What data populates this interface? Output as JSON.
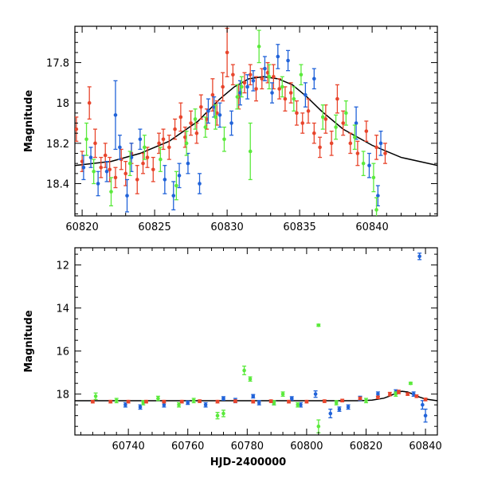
{
  "chart_data": [
    {
      "type": "scatter",
      "title": "",
      "xlabel": "",
      "ylabel": "Magnitude",
      "xlim": [
        60819.5,
        60844.5
      ],
      "ylim": [
        18.56,
        17.62
      ],
      "y_inverted": true,
      "x_ticks": [
        60820,
        60825,
        60830,
        60835,
        60840
      ],
      "y_ticks": [
        17.8,
        18,
        18.2,
        18.4
      ],
      "y_tick_labels": [
        "17.8",
        "18",
        "18.2",
        "18.4"
      ],
      "grid": false,
      "model_curve": {
        "color": "#000000",
        "points": [
          [
            60819.5,
            18.31
          ],
          [
            60822,
            18.29
          ],
          [
            60824,
            18.25
          ],
          [
            60826,
            18.19
          ],
          [
            60828,
            18.09
          ],
          [
            60829.5,
            17.98
          ],
          [
            60830.5,
            17.92
          ],
          [
            60831.5,
            17.88
          ],
          [
            60832.5,
            17.87
          ],
          [
            60833.5,
            17.88
          ],
          [
            60834.5,
            17.91
          ],
          [
            60835.5,
            17.97
          ],
          [
            60836.5,
            18.04
          ],
          [
            60838,
            18.13
          ],
          [
            60840,
            18.21
          ],
          [
            60842,
            18.27
          ],
          [
            60844.5,
            18.31
          ]
        ]
      },
      "series": [
        {
          "color": "#e8452c",
          "points": [
            [
              60819.6,
              18.13,
              0.06
            ],
            [
              60820.0,
              18.29,
              0.05
            ],
            [
              60820.5,
              18.0,
              0.08
            ],
            [
              60820.9,
              18.2,
              0.07
            ],
            [
              60821.3,
              18.32,
              0.05
            ],
            [
              60821.6,
              18.26,
              0.06
            ],
            [
              60821.9,
              18.33,
              0.06
            ],
            [
              60822.3,
              18.37,
              0.05
            ],
            [
              60822.7,
              18.28,
              0.05
            ],
            [
              60823.0,
              18.35,
              0.06
            ],
            [
              60823.4,
              18.25,
              0.05
            ],
            [
              60823.8,
              18.38,
              0.07
            ],
            [
              60824.2,
              18.3,
              0.05
            ],
            [
              60824.5,
              18.27,
              0.05
            ],
            [
              60824.9,
              18.33,
              0.06
            ],
            [
              60825.3,
              18.2,
              0.05
            ],
            [
              60825.6,
              18.18,
              0.05
            ],
            [
              60826.0,
              18.22,
              0.06
            ],
            [
              60826.4,
              18.13,
              0.05
            ],
            [
              60826.8,
              18.07,
              0.07
            ],
            [
              60827.1,
              18.17,
              0.05
            ],
            [
              60827.5,
              18.1,
              0.06
            ],
            [
              60827.9,
              18.15,
              0.05
            ],
            [
              60828.2,
              18.02,
              0.06
            ],
            [
              60828.6,
              18.08,
              0.05
            ],
            [
              60829.0,
              17.96,
              0.08
            ],
            [
              60829.3,
              18.05,
              0.06
            ],
            [
              60829.7,
              17.92,
              0.07
            ],
            [
              60830.0,
              17.75,
              0.12
            ],
            [
              60830.4,
              17.86,
              0.05
            ],
            [
              60830.8,
              17.97,
              0.06
            ],
            [
              60831.2,
              17.9,
              0.05
            ],
            [
              60831.6,
              17.86,
              0.05
            ],
            [
              60832.0,
              17.93,
              0.06
            ],
            [
              60832.4,
              17.88,
              0.05
            ],
            [
              60832.8,
              17.85,
              0.05
            ],
            [
              60833.2,
              17.87,
              0.06
            ],
            [
              60833.6,
              17.93,
              0.05
            ],
            [
              60834.0,
              17.98,
              0.06
            ],
            [
              60834.4,
              17.95,
              0.05
            ],
            [
              60834.8,
              18.05,
              0.06
            ],
            [
              60835.2,
              18.1,
              0.05
            ],
            [
              60835.6,
              18.04,
              0.06
            ],
            [
              60836.0,
              18.15,
              0.05
            ],
            [
              60836.4,
              18.22,
              0.05
            ],
            [
              60836.8,
              18.08,
              0.07
            ],
            [
              60837.2,
              18.2,
              0.06
            ],
            [
              60837.6,
              17.98,
              0.07
            ],
            [
              60838.0,
              18.1,
              0.06
            ],
            [
              60838.5,
              18.2,
              0.05
            ],
            [
              60839.0,
              18.25,
              0.06
            ],
            [
              60839.6,
              18.14,
              0.05
            ],
            [
              60840.3,
              18.22,
              0.06
            ],
            [
              60840.9,
              18.25,
              0.05
            ]
          ]
        },
        {
          "color": "#2163d9",
          "points": [
            [
              60820.1,
              18.32,
              0.06
            ],
            [
              60820.6,
              18.27,
              0.05
            ],
            [
              60821.1,
              18.4,
              0.06
            ],
            [
              60821.7,
              18.34,
              0.05
            ],
            [
              60822.3,
              18.06,
              0.17
            ],
            [
              60822.6,
              18.22,
              0.06
            ],
            [
              60823.1,
              18.46,
              0.08
            ],
            [
              60823.4,
              18.27,
              0.07
            ],
            [
              60824.0,
              18.18,
              0.05
            ],
            [
              60825.7,
              18.38,
              0.07
            ],
            [
              60826.3,
              18.46,
              0.07
            ],
            [
              60826.7,
              18.36,
              0.06
            ],
            [
              60827.3,
              18.3,
              0.05
            ],
            [
              60828.1,
              18.4,
              0.05
            ],
            [
              60828.7,
              18.04,
              0.06
            ],
            [
              60829.1,
              18.02,
              0.05
            ],
            [
              60829.5,
              18.06,
              0.06
            ],
            [
              60830.3,
              18.1,
              0.06
            ],
            [
              60830.9,
              17.95,
              0.06
            ],
            [
              60831.4,
              17.92,
              0.06
            ],
            [
              60831.8,
              17.89,
              0.05
            ],
            [
              60832.6,
              17.83,
              0.06
            ],
            [
              60833.1,
              17.95,
              0.05
            ],
            [
              60833.5,
              17.77,
              0.06
            ],
            [
              60834.2,
              17.79,
              0.05
            ],
            [
              60835.4,
              17.96,
              0.06
            ],
            [
              60836.0,
              17.88,
              0.05
            ],
            [
              60838.9,
              18.1,
              0.08
            ],
            [
              60839.8,
              18.31,
              0.06
            ],
            [
              60840.4,
              18.46,
              0.05
            ],
            [
              60840.6,
              18.2,
              0.06
            ]
          ]
        },
        {
          "color": "#5bea3c",
          "points": [
            [
              60820.3,
              18.18,
              0.08
            ],
            [
              60820.8,
              18.34,
              0.06
            ],
            [
              60822.0,
              18.44,
              0.07
            ],
            [
              60823.3,
              18.3,
              0.06
            ],
            [
              60824.3,
              18.22,
              0.06
            ],
            [
              60825.4,
              18.28,
              0.06
            ],
            [
              60826.5,
              18.41,
              0.07
            ],
            [
              60827.2,
              18.2,
              0.06
            ],
            [
              60827.8,
              18.08,
              0.05
            ],
            [
              60828.5,
              18.12,
              0.05
            ],
            [
              60829.2,
              18.07,
              0.06
            ],
            [
              60829.8,
              18.18,
              0.06
            ],
            [
              60830.7,
              17.97,
              0.06
            ],
            [
              60831.0,
              17.92,
              0.05
            ],
            [
              60831.6,
              18.24,
              0.14
            ],
            [
              60832.2,
              17.72,
              0.08
            ],
            [
              60832.9,
              17.87,
              0.06
            ],
            [
              60833.8,
              17.92,
              0.05
            ],
            [
              60834.6,
              17.98,
              0.06
            ],
            [
              60835.1,
              17.86,
              0.05
            ],
            [
              60836.6,
              18.07,
              0.06
            ],
            [
              60837.5,
              18.12,
              0.06
            ],
            [
              60838.2,
              18.05,
              0.06
            ],
            [
              60838.8,
              18.17,
              0.06
            ],
            [
              60839.4,
              18.3,
              0.06
            ],
            [
              60840.1,
              18.37,
              0.07
            ],
            [
              60840.3,
              18.53,
              0.06
            ]
          ]
        }
      ]
    },
    {
      "type": "scatter",
      "title": "",
      "xlabel": "HJD-2400000",
      "ylabel": "Magnitude",
      "xlim": [
        60722,
        60844
      ],
      "ylim": [
        19.9,
        11.2
      ],
      "y_inverted": true,
      "x_ticks": [
        60740,
        60760,
        60780,
        60800,
        60820,
        60840
      ],
      "y_ticks": [
        12,
        14,
        16,
        18
      ],
      "y_tick_labels": [
        "12",
        "14",
        "16",
        "18"
      ],
      "grid": false,
      "model_curve": {
        "color": "#000000",
        "points": [
          [
            60722,
            18.31
          ],
          [
            60818,
            18.31
          ],
          [
            60822,
            18.28
          ],
          [
            60826,
            18.19
          ],
          [
            60828,
            18.09
          ],
          [
            60830,
            17.96
          ],
          [
            60832,
            17.87
          ],
          [
            60834,
            17.9
          ],
          [
            60836,
            18.02
          ],
          [
            60838,
            18.14
          ],
          [
            60840,
            18.23
          ],
          [
            60844,
            18.31
          ]
        ]
      },
      "series": [
        {
          "color": "#2163d9",
          "points": [
            [
              60739,
              18.5,
              0.1
            ],
            [
              60744,
              18.6,
              0.1
            ],
            [
              60752,
              18.5,
              0.1
            ],
            [
              60760,
              18.4,
              0.08
            ],
            [
              60766,
              18.5,
              0.1
            ],
            [
              60772,
              18.2,
              0.08
            ],
            [
              60776,
              18.3,
              0.1
            ],
            [
              60782,
              18.1,
              0.08
            ],
            [
              60784,
              18.4,
              0.1
            ],
            [
              60789,
              18.4,
              0.1
            ],
            [
              60795,
              18.2,
              0.08
            ],
            [
              60798,
              18.5,
              0.1
            ],
            [
              60803,
              18.0,
              0.15
            ],
            [
              60808,
              18.9,
              0.2
            ],
            [
              60811,
              18.7,
              0.1
            ],
            [
              60814,
              18.6,
              0.1
            ],
            [
              60818,
              18.2,
              0.1
            ],
            [
              60824,
              18.0,
              0.1
            ],
            [
              60830,
              17.9,
              0.1
            ],
            [
              60836,
              18.0,
              0.1
            ],
            [
              60838,
              11.6,
              0.15
            ],
            [
              60839,
              18.5,
              0.2
            ],
            [
              60840,
              19.0,
              0.3
            ]
          ]
        },
        {
          "color": "#5bea3c",
          "points": [
            [
              60729,
              18.1,
              0.15
            ],
            [
              60736,
              18.3,
              0.1
            ],
            [
              60745,
              18.4,
              0.1
            ],
            [
              60750,
              18.2,
              0.1
            ],
            [
              60757,
              18.5,
              0.1
            ],
            [
              60762,
              18.3,
              0.1
            ],
            [
              60770,
              19.0,
              0.15
            ],
            [
              60772,
              18.9,
              0.15
            ],
            [
              60779,
              16.9,
              0.2
            ],
            [
              60781,
              17.3,
              0.1
            ],
            [
              60789,
              18.4,
              0.1
            ],
            [
              60792,
              18.0,
              0.1
            ],
            [
              60797,
              18.5,
              0.1
            ],
            [
              60804,
              14.8,
              0.05
            ],
            [
              60804,
              19.5,
              0.3
            ],
            [
              60810,
              18.4,
              0.1
            ],
            [
              60820,
              18.3,
              0.1
            ],
            [
              60830,
              18.0,
              0.1
            ],
            [
              60835,
              17.5,
              0.05
            ]
          ]
        },
        {
          "color": "#e8452c",
          "points": [
            [
              60728,
              18.35,
              0.06
            ],
            [
              60734,
              18.35,
              0.06
            ],
            [
              60740,
              18.35,
              0.06
            ],
            [
              60746,
              18.35,
              0.06
            ],
            [
              60752,
              18.35,
              0.06
            ],
            [
              60758,
              18.35,
              0.06
            ],
            [
              60764,
              18.33,
              0.06
            ],
            [
              60770,
              18.35,
              0.06
            ],
            [
              60776,
              18.33,
              0.06
            ],
            [
              60782,
              18.35,
              0.06
            ],
            [
              60788,
              18.33,
              0.06
            ],
            [
              60794,
              18.35,
              0.06
            ],
            [
              60800,
              18.35,
              0.06
            ],
            [
              60806,
              18.33,
              0.06
            ],
            [
              60812,
              18.3,
              0.06
            ],
            [
              60818,
              18.2,
              0.06
            ],
            [
              60824,
              18.15,
              0.06
            ],
            [
              60828,
              18.0,
              0.08
            ],
            [
              60831,
              17.9,
              0.08
            ],
            [
              60834,
              18.0,
              0.06
            ],
            [
              60837,
              18.1,
              0.06
            ],
            [
              60840,
              18.25,
              0.06
            ]
          ]
        }
      ]
    }
  ]
}
